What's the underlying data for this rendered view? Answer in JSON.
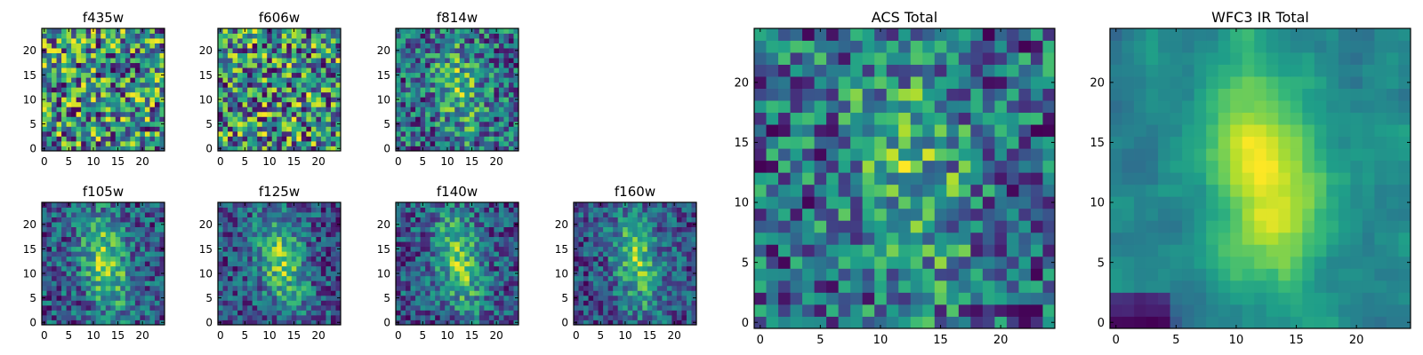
{
  "chart_data": [
    {
      "type": "heatmap",
      "title": "f435w",
      "xlim": [
        0,
        25
      ],
      "ylim": [
        0,
        25
      ],
      "xticks": [
        0,
        5,
        10,
        15,
        20
      ],
      "yticks": [
        0,
        5,
        10,
        15,
        20
      ],
      "xtick_labels": [
        "0",
        "5",
        "10",
        "15",
        "20"
      ],
      "ytick_labels": [
        "0",
        "5",
        "10",
        "15",
        "20"
      ],
      "grid_size": 25,
      "colormap": "viridis",
      "pattern": "noise",
      "seed": 11
    },
    {
      "type": "heatmap",
      "title": "f606w",
      "xlim": [
        0,
        25
      ],
      "ylim": [
        0,
        25
      ],
      "xticks": [
        0,
        5,
        10,
        15,
        20
      ],
      "yticks": [
        0,
        5,
        10,
        15,
        20
      ],
      "xtick_labels": [
        "0",
        "5",
        "10",
        "15",
        "20"
      ],
      "ytick_labels": [
        "0",
        "5",
        "10",
        "15",
        "20"
      ],
      "grid_size": 25,
      "colormap": "viridis",
      "pattern": "noise",
      "seed": 23
    },
    {
      "type": "heatmap",
      "title": "f814w",
      "xlim": [
        0,
        25
      ],
      "ylim": [
        0,
        25
      ],
      "xticks": [
        0,
        5,
        10,
        15,
        20
      ],
      "yticks": [
        0,
        5,
        10,
        15,
        20
      ],
      "xtick_labels": [
        "0",
        "5",
        "10",
        "15",
        "20"
      ],
      "ytick_labels": [
        "0",
        "5",
        "10",
        "15",
        "20"
      ],
      "grid_size": 25,
      "colormap": "viridis",
      "pattern": "faint-source",
      "seed": 37
    },
    {
      "type": "heatmap",
      "title": "f105w",
      "xlim": [
        0,
        25
      ],
      "ylim": [
        0,
        25
      ],
      "xticks": [
        0,
        5,
        10,
        15,
        20
      ],
      "yticks": [
        0,
        5,
        10,
        15,
        20
      ],
      "xtick_labels": [
        "0",
        "5",
        "10",
        "15",
        "20"
      ],
      "ytick_labels": [
        "0",
        "5",
        "10",
        "15",
        "20"
      ],
      "grid_size": 25,
      "colormap": "viridis",
      "pattern": "source",
      "seed": 41
    },
    {
      "type": "heatmap",
      "title": "f125w",
      "xlim": [
        0,
        25
      ],
      "ylim": [
        0,
        25
      ],
      "xticks": [
        0,
        5,
        10,
        15,
        20
      ],
      "yticks": [
        0,
        5,
        10,
        15,
        20
      ],
      "xtick_labels": [
        "0",
        "5",
        "10",
        "15",
        "20"
      ],
      "ytick_labels": [
        "0",
        "5",
        "10",
        "15",
        "20"
      ],
      "grid_size": 25,
      "colormap": "viridis",
      "pattern": "source",
      "seed": 53
    },
    {
      "type": "heatmap",
      "title": "f140w",
      "xlim": [
        0,
        25
      ],
      "ylim": [
        0,
        25
      ],
      "xticks": [
        0,
        5,
        10,
        15,
        20
      ],
      "yticks": [
        0,
        5,
        10,
        15,
        20
      ],
      "xtick_labels": [
        "0",
        "5",
        "10",
        "15",
        "20"
      ],
      "ytick_labels": [
        "0",
        "5",
        "10",
        "15",
        "20"
      ],
      "grid_size": 25,
      "colormap": "viridis",
      "pattern": "source",
      "seed": 67
    },
    {
      "type": "heatmap",
      "title": "f160w",
      "xlim": [
        0,
        25
      ],
      "ylim": [
        0,
        25
      ],
      "xticks": [
        0,
        5,
        10,
        15,
        20
      ],
      "yticks": [
        0,
        5,
        10,
        15,
        20
      ],
      "xtick_labels": [
        "0",
        "5",
        "10",
        "15",
        "20"
      ],
      "ytick_labels": [
        "0",
        "5",
        "10",
        "15",
        "20"
      ],
      "grid_size": 25,
      "colormap": "viridis",
      "pattern": "source",
      "seed": 79
    },
    {
      "type": "heatmap",
      "title": "ACS Total",
      "xlim": [
        0,
        25
      ],
      "ylim": [
        0,
        25
      ],
      "xticks": [
        0,
        5,
        10,
        15,
        20
      ],
      "yticks": [
        0,
        5,
        10,
        15,
        20
      ],
      "xtick_labels": [
        "0",
        "5",
        "10",
        "15",
        "20"
      ],
      "ytick_labels": [
        "0",
        "5",
        "10",
        "15",
        "20"
      ],
      "grid_size": 25,
      "colormap": "viridis",
      "pattern": "faint-source",
      "seed": 83
    },
    {
      "type": "heatmap",
      "title": "WFC3 IR Total",
      "xlim": [
        0,
        25
      ],
      "ylim": [
        0,
        25
      ],
      "xticks": [
        0,
        5,
        10,
        15,
        20
      ],
      "yticks": [
        0,
        5,
        10,
        15,
        20
      ],
      "xtick_labels": [
        "0",
        "5",
        "10",
        "15",
        "20"
      ],
      "ytick_labels": [
        "0",
        "5",
        "10",
        "15",
        "20"
      ],
      "grid_size": 25,
      "colormap": "viridis",
      "pattern": "smooth-source",
      "seed": 97
    }
  ]
}
